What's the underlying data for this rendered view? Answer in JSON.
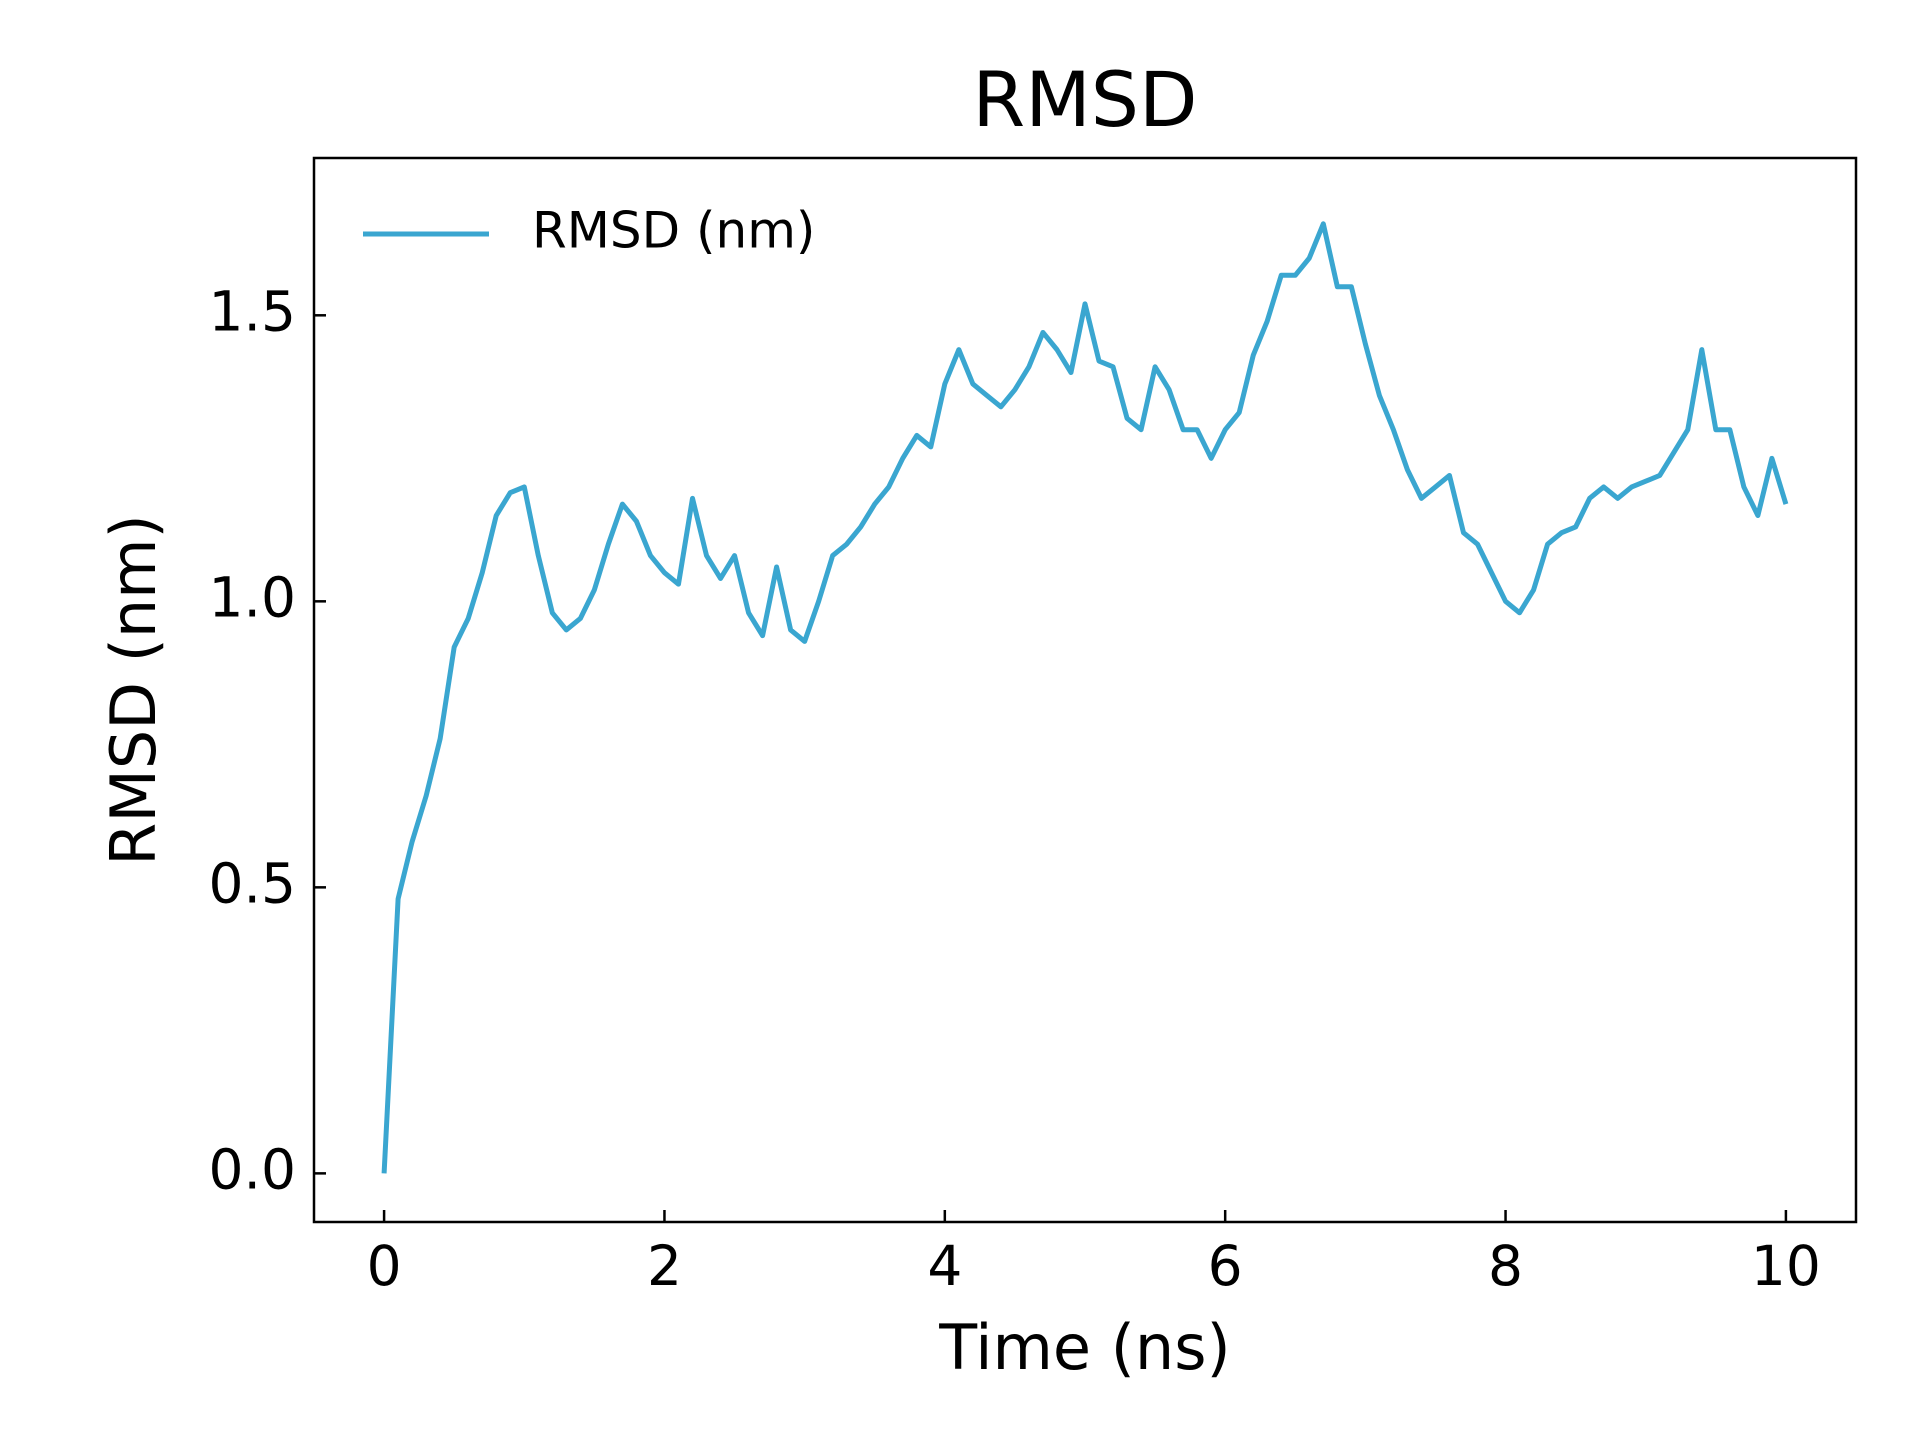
{
  "chart_data": {
    "type": "line",
    "title": "RMSD",
    "xlabel": "Time (ns)",
    "ylabel": "RMSD (nm)",
    "x": [
      0,
      0.1,
      0.2,
      0.3,
      0.4,
      0.5,
      0.6,
      0.7,
      0.8,
      0.9,
      1.0,
      1.1,
      1.2,
      1.3,
      1.4,
      1.5,
      1.6,
      1.7,
      1.8,
      1.9,
      2.0,
      2.1,
      2.2,
      2.3,
      2.4,
      2.5,
      2.6,
      2.7,
      2.8,
      2.9,
      3.0,
      3.1,
      3.2,
      3.3,
      3.4,
      3.5,
      3.6,
      3.7,
      3.8,
      3.9,
      4.0,
      4.1,
      4.2,
      4.3,
      4.4,
      4.5,
      4.6,
      4.7,
      4.8,
      4.9,
      5.0,
      5.1,
      5.2,
      5.3,
      5.4,
      5.5,
      5.6,
      5.7,
      5.8,
      5.9,
      6.0,
      6.1,
      6.2,
      6.3,
      6.4,
      6.5,
      6.6,
      6.7,
      6.8,
      6.9,
      7.0,
      7.1,
      7.2,
      7.3,
      7.4,
      7.5,
      7.6,
      7.7,
      7.8,
      7.9,
      8.0,
      8.1,
      8.2,
      8.3,
      8.4,
      8.5,
      8.6,
      8.7,
      8.8,
      8.9,
      9.0,
      9.1,
      9.2,
      9.3,
      9.4,
      9.5,
      9.6,
      9.7,
      9.8,
      9.9,
      10.0
    ],
    "series": [
      {
        "name": "RMSD (nm)",
        "color": "#3aa6d0",
        "values": [
          0.0,
          0.48,
          0.58,
          0.66,
          0.76,
          0.92,
          0.97,
          1.05,
          1.15,
          1.19,
          1.2,
          1.08,
          0.98,
          0.95,
          0.97,
          1.02,
          1.1,
          1.17,
          1.14,
          1.08,
          1.05,
          1.03,
          1.18,
          1.08,
          1.04,
          1.08,
          0.98,
          0.94,
          1.06,
          0.95,
          0.93,
          1.0,
          1.08,
          1.1,
          1.13,
          1.17,
          1.2,
          1.25,
          1.29,
          1.27,
          1.38,
          1.44,
          1.38,
          1.36,
          1.34,
          1.37,
          1.41,
          1.47,
          1.44,
          1.4,
          1.52,
          1.42,
          1.41,
          1.32,
          1.3,
          1.41,
          1.37,
          1.3,
          1.3,
          1.25,
          1.3,
          1.33,
          1.43,
          1.49,
          1.57,
          1.57,
          1.6,
          1.66,
          1.55,
          1.55,
          1.45,
          1.36,
          1.3,
          1.23,
          1.18,
          1.2,
          1.22,
          1.12,
          1.1,
          1.05,
          1.0,
          0.98,
          1.02,
          1.1,
          1.12,
          1.13,
          1.18,
          1.2,
          1.18,
          1.2,
          1.21,
          1.22,
          1.26,
          1.3,
          1.44,
          1.3,
          1.3,
          1.2,
          1.15,
          1.25,
          1.17
        ]
      }
    ],
    "xlim": [
      -0.5,
      10.5
    ],
    "ylim": [
      -0.085,
      1.775
    ],
    "xticks": [
      0,
      2,
      4,
      6,
      8,
      10
    ],
    "yticks": [
      {
        "value": 0,
        "label": "0.0"
      },
      0.5,
      {
        "value": 1,
        "label": "1.0"
      },
      1.5
    ],
    "legend": "upper left"
  }
}
